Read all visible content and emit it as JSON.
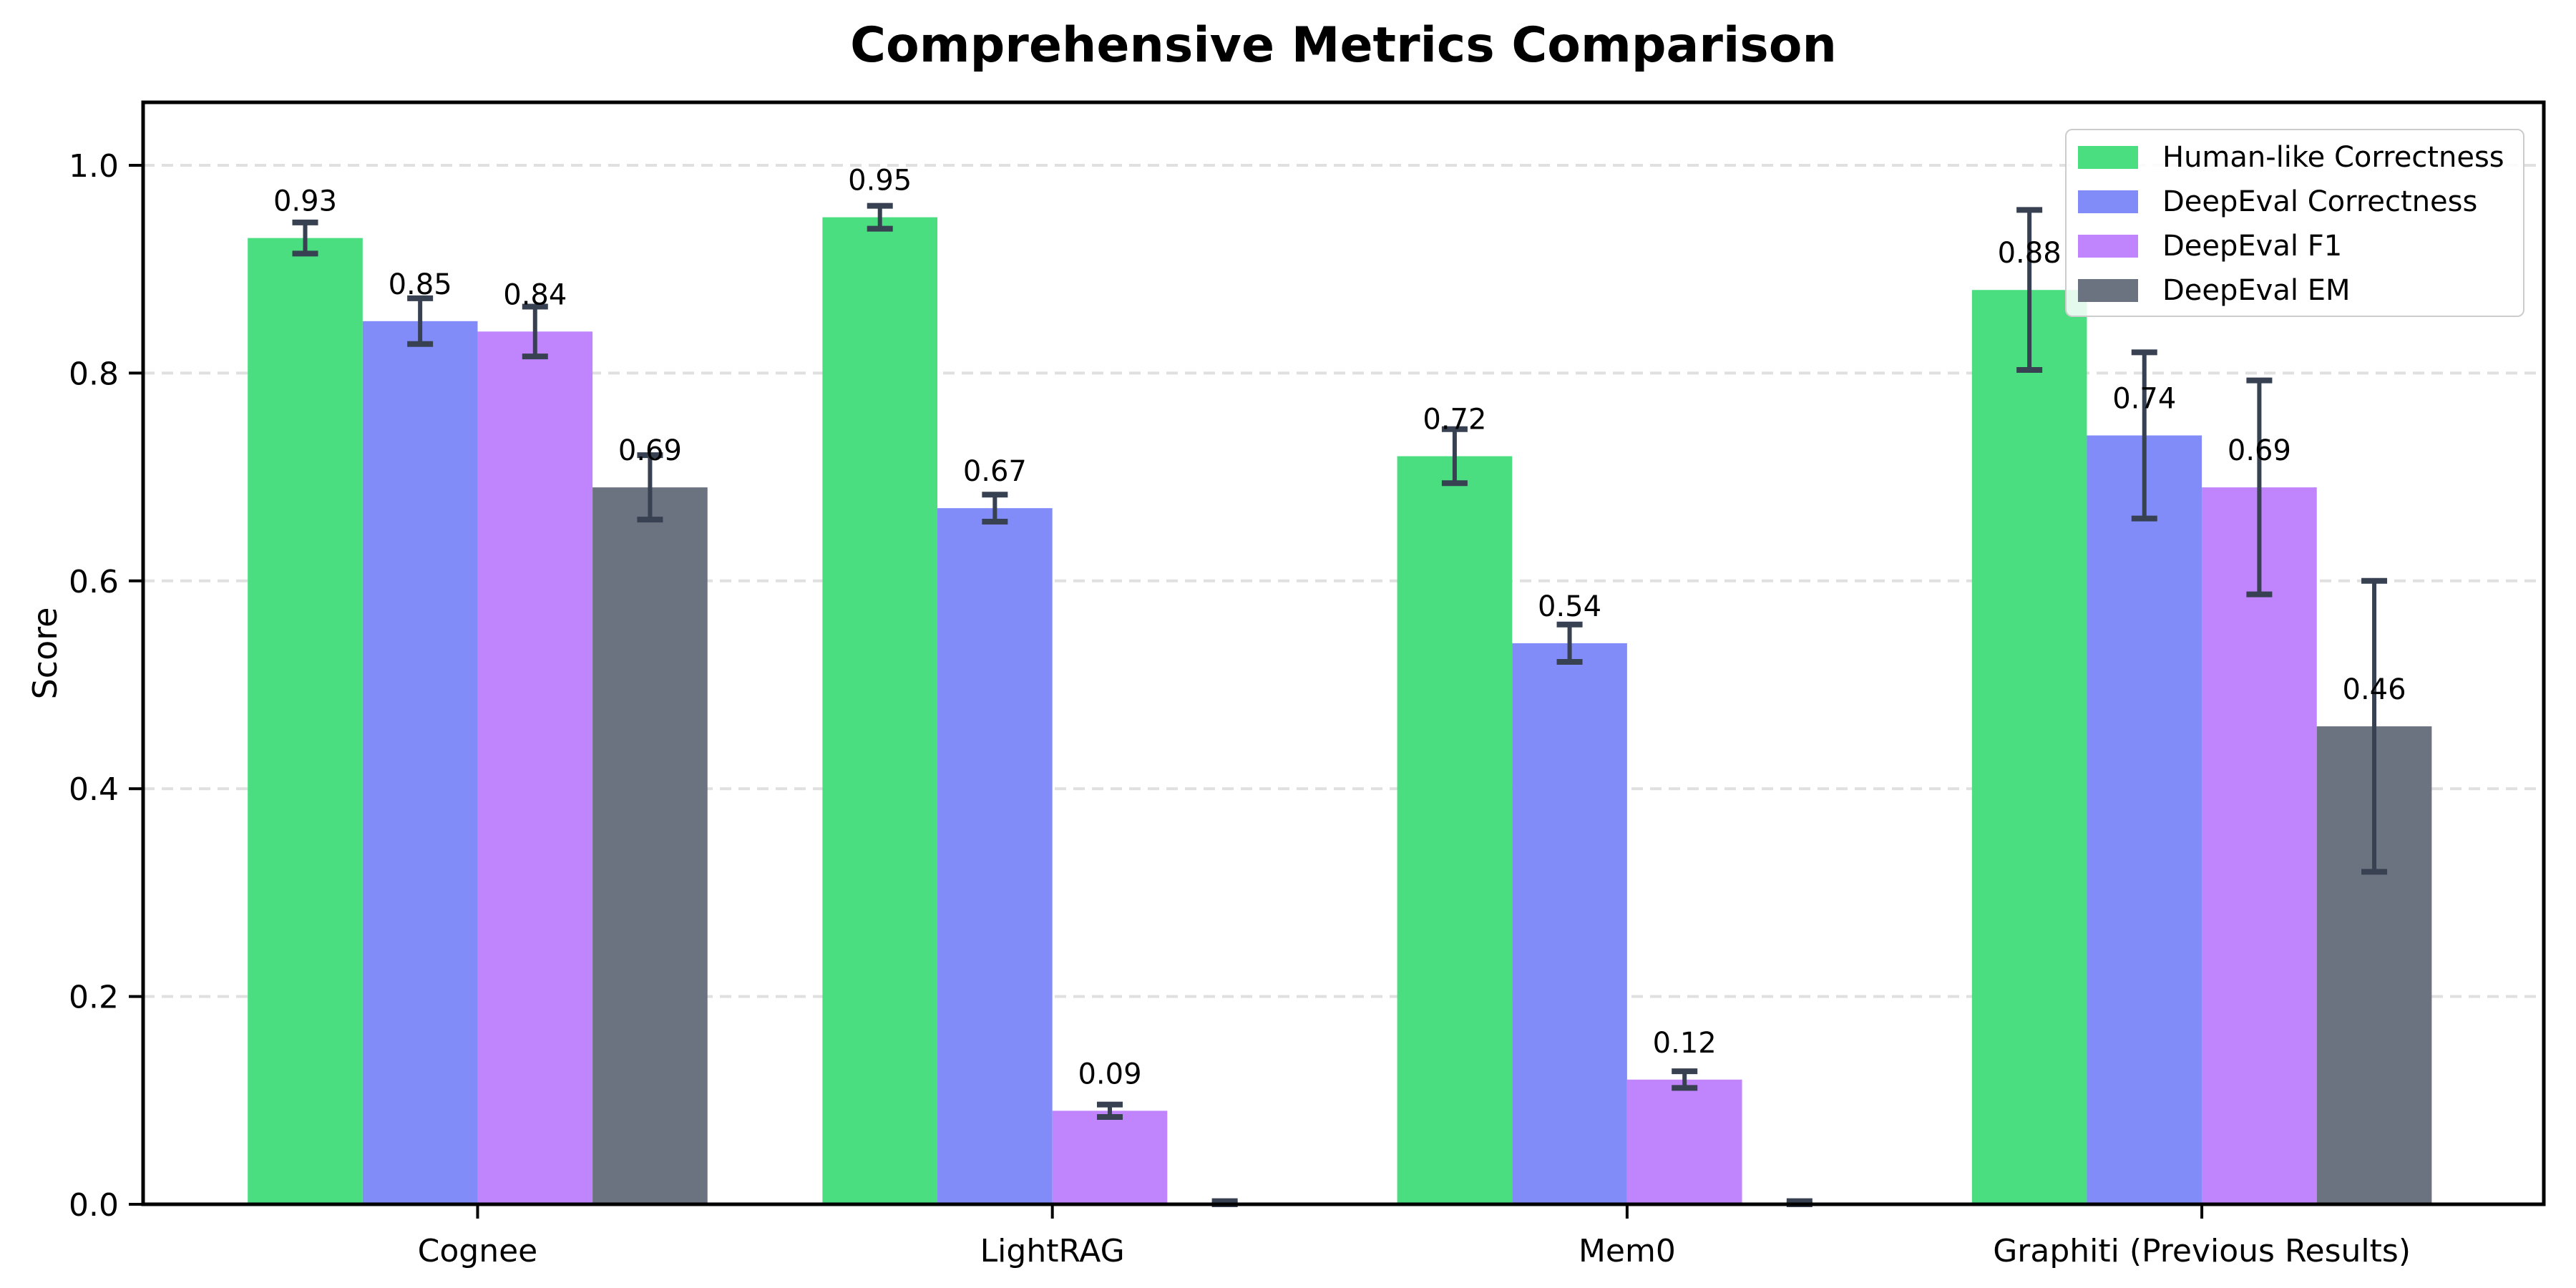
{
  "chart_data": {
    "type": "bar",
    "title": "Comprehensive Metrics Comparison",
    "ylabel": "Score",
    "xlabel": "",
    "categories": [
      "Cognee",
      "LightRAG",
      "Mem0",
      "Graphiti (Previous Results)"
    ],
    "series": [
      {
        "name": "Human-like Correctness",
        "color": "#4ade80",
        "values": [
          0.93,
          0.95,
          0.72,
          0.88
        ],
        "errors": [
          0.015,
          0.011,
          0.026,
          0.077
        ],
        "labels": [
          "0.93",
          "0.95",
          "0.72",
          "0.88"
        ]
      },
      {
        "name": "DeepEval Correctness",
        "color": "#818cf8",
        "values": [
          0.85,
          0.67,
          0.54,
          0.74
        ],
        "errors": [
          0.022,
          0.013,
          0.018,
          0.08
        ],
        "labels": [
          "0.85",
          "0.67",
          "0.54",
          "0.74"
        ]
      },
      {
        "name": "DeepEval F1",
        "color": "#c084fc",
        "values": [
          0.84,
          0.09,
          0.12,
          0.69
        ],
        "errors": [
          0.024,
          0.006,
          0.008,
          0.103
        ],
        "labels": [
          "0.84",
          "0.09",
          "0.12",
          "0.69"
        ]
      },
      {
        "name": "DeepEval EM",
        "color": "#6b7280",
        "values": [
          0.69,
          0.0,
          0.0,
          0.46
        ],
        "errors": [
          0.031,
          0.003,
          0.003,
          0.14
        ],
        "labels": [
          "0.69",
          null,
          null,
          "0.46"
        ]
      }
    ],
    "ytick_labels": [
      "0.0",
      "0.2",
      "0.4",
      "0.6",
      "0.8",
      "1.0"
    ],
    "ylim": [
      0,
      1.06
    ],
    "grid": "horizontal dashed",
    "gridline_color": "#e0e0e0",
    "legend_position": "upper right",
    "error_bar_color": "#374151",
    "axis_color": "#000000",
    "background_color": "#ffffff"
  }
}
